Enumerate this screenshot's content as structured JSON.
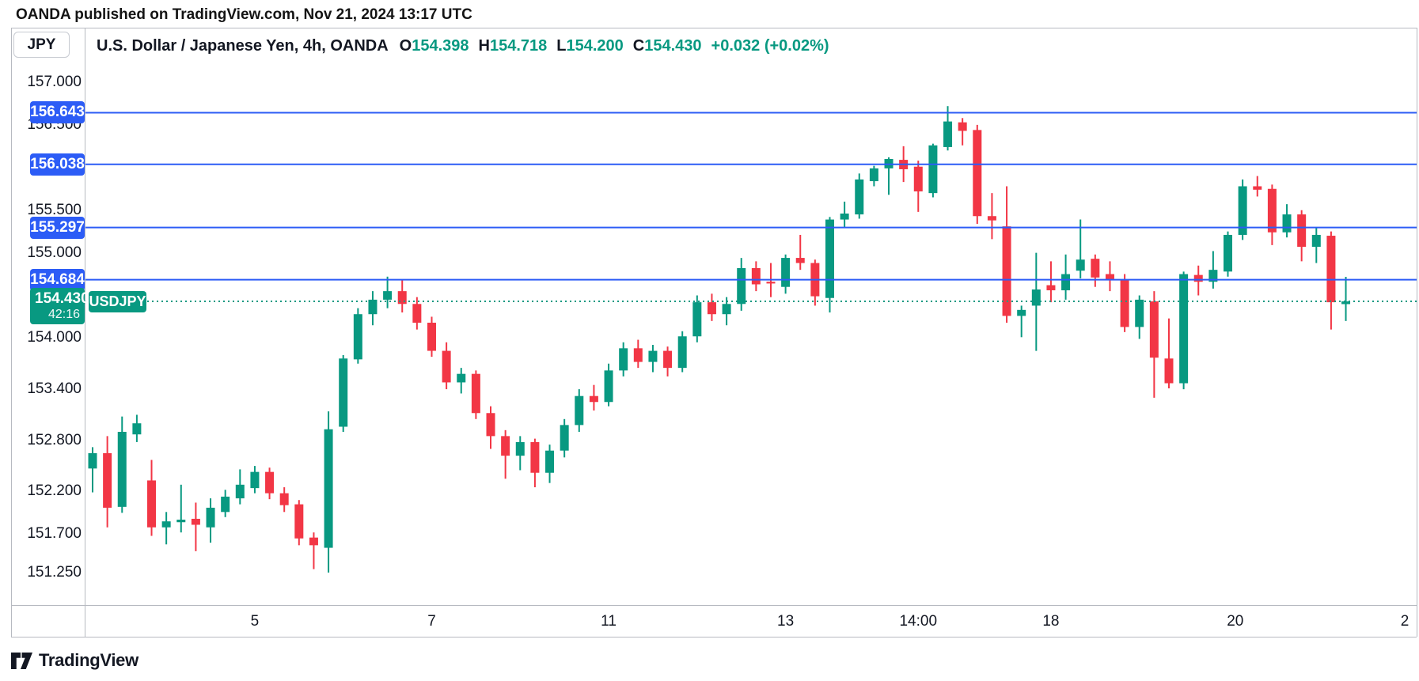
{
  "header": {
    "publisher_line": "OANDA published on TradingView.com, Nov 21, 2024 13:17 UTC"
  },
  "symbol_box": {
    "label": "JPY"
  },
  "chart_header": {
    "title": "U.S. Dollar / Japanese Yen, 4h, OANDA",
    "open_label": "O",
    "open": "154.398",
    "high_label": "H",
    "high": "154.718",
    "low_label": "L",
    "low": "154.200",
    "close_label": "C",
    "close": "154.430",
    "change": "+0.032 (+0.02%)"
  },
  "price_axis": {
    "ticks": [
      {
        "label": "157.000",
        "price": 157.0
      },
      {
        "label": "156.500",
        "price": 156.5
      },
      {
        "label": "155.500",
        "price": 155.5
      },
      {
        "label": "155.000",
        "price": 155.0
      },
      {
        "label": "154.000",
        "price": 154.0
      },
      {
        "label": "153.400",
        "price": 153.4
      },
      {
        "label": "152.800",
        "price": 152.8
      },
      {
        "label": "152.200",
        "price": 152.2
      },
      {
        "label": "151.700",
        "price": 151.7
      },
      {
        "label": "151.250",
        "price": 151.25
      }
    ]
  },
  "alert_lines": [
    {
      "label": "156.643",
      "price": 156.643
    },
    {
      "label": "156.038",
      "price": 156.038
    },
    {
      "label": "155.297",
      "price": 155.297
    },
    {
      "label": "154.684",
      "price": 154.684
    }
  ],
  "current_price": {
    "label": "154.430",
    "price": 154.43,
    "countdown": "42:16",
    "symbol": "USDJPY"
  },
  "time_axis": [
    {
      "label": "5",
      "index": 11
    },
    {
      "label": "7",
      "index": 23
    },
    {
      "label": "11",
      "index": 35
    },
    {
      "label": "13",
      "index": 47
    },
    {
      "label": "14:00",
      "index": 56
    },
    {
      "label": "18",
      "index": 65
    },
    {
      "label": "20",
      "index": 77.5
    },
    {
      "label": "2",
      "index": 89
    }
  ],
  "footer": {
    "brand": "TradingView"
  },
  "colors": {
    "up": "#089981",
    "down": "#f23645",
    "alert_blue": "#2c5cf6",
    "text": "#131722"
  },
  "chart_data": {
    "type": "candlestick",
    "symbol": "USDJPY",
    "title": "U.S. Dollar / Japanese Yen, 4h, OANDA",
    "timeframe": "4h",
    "ylim": [
      150.87,
      157.64
    ],
    "grid": false,
    "alert_levels": [
      156.643,
      156.038,
      155.297,
      154.684
    ],
    "last_price": 154.43,
    "time_tick_labels": [
      "5",
      "7",
      "11",
      "13",
      "14:00",
      "18",
      "20",
      "2"
    ],
    "price_tick_values": [
      157.0,
      156.5,
      155.5,
      155.0,
      154.0,
      153.4,
      152.8,
      152.2,
      151.7,
      151.25
    ],
    "candles_ohlc": [
      [
        152.47,
        152.72,
        152.19,
        152.65
      ],
      [
        152.65,
        152.85,
        151.78,
        152.01
      ],
      [
        152.02,
        153.08,
        151.95,
        152.9
      ],
      [
        152.87,
        153.1,
        152.78,
        153.0
      ],
      [
        152.33,
        152.57,
        151.68,
        151.78
      ],
      [
        151.78,
        151.96,
        151.58,
        151.85
      ],
      [
        151.84,
        152.28,
        151.72,
        151.87
      ],
      [
        151.88,
        152.07,
        151.5,
        151.81
      ],
      [
        151.78,
        152.12,
        151.6,
        152.01
      ],
      [
        151.96,
        152.22,
        151.9,
        152.14
      ],
      [
        152.12,
        152.46,
        152.05,
        152.28
      ],
      [
        152.24,
        152.5,
        152.18,
        152.43
      ],
      [
        152.43,
        152.48,
        152.11,
        152.18
      ],
      [
        152.18,
        152.25,
        151.96,
        152.04
      ],
      [
        152.05,
        152.1,
        151.57,
        151.65
      ],
      [
        151.66,
        151.72,
        151.29,
        151.57
      ],
      [
        151.54,
        153.14,
        151.25,
        152.93
      ],
      [
        152.96,
        153.8,
        152.9,
        153.76
      ],
      [
        153.75,
        154.35,
        153.7,
        154.28
      ],
      [
        154.28,
        154.55,
        154.15,
        154.45
      ],
      [
        154.45,
        154.72,
        154.35,
        154.55
      ],
      [
        154.55,
        154.68,
        154.3,
        154.4
      ],
      [
        154.4,
        154.48,
        154.1,
        154.18
      ],
      [
        154.18,
        154.25,
        153.78,
        153.85
      ],
      [
        153.85,
        153.95,
        153.4,
        153.48
      ],
      [
        153.48,
        153.65,
        153.35,
        153.58
      ],
      [
        153.58,
        153.62,
        153.05,
        153.12
      ],
      [
        153.12,
        153.2,
        152.7,
        152.85
      ],
      [
        152.85,
        152.92,
        152.35,
        152.62
      ],
      [
        152.62,
        152.85,
        152.45,
        152.78
      ],
      [
        152.78,
        152.82,
        152.25,
        152.42
      ],
      [
        152.42,
        152.75,
        152.3,
        152.68
      ],
      [
        152.68,
        153.05,
        152.6,
        152.98
      ],
      [
        152.98,
        153.4,
        152.9,
        153.32
      ],
      [
        153.32,
        153.45,
        153.15,
        153.25
      ],
      [
        153.25,
        153.7,
        153.2,
        153.62
      ],
      [
        153.62,
        153.95,
        153.55,
        153.88
      ],
      [
        153.88,
        153.98,
        153.65,
        153.72
      ],
      [
        153.72,
        153.92,
        153.6,
        153.85
      ],
      [
        153.85,
        153.9,
        153.55,
        153.65
      ],
      [
        153.65,
        154.08,
        153.6,
        154.02
      ],
      [
        154.02,
        154.5,
        153.95,
        154.42
      ],
      [
        154.42,
        154.52,
        154.2,
        154.28
      ],
      [
        154.28,
        154.48,
        154.15,
        154.4
      ],
      [
        154.4,
        154.94,
        154.32,
        154.82
      ],
      [
        154.82,
        154.9,
        154.55,
        154.63
      ],
      [
        154.66,
        154.88,
        154.48,
        154.64
      ],
      [
        154.6,
        154.98,
        154.52,
        154.94
      ],
      [
        154.94,
        155.21,
        154.8,
        154.88
      ],
      [
        154.88,
        154.92,
        154.38,
        154.49
      ],
      [
        154.47,
        155.42,
        154.3,
        155.39
      ],
      [
        155.39,
        155.6,
        155.3,
        155.46
      ],
      [
        155.45,
        155.93,
        155.4,
        155.86
      ],
      [
        155.84,
        156.02,
        155.78,
        155.99
      ],
      [
        155.99,
        156.12,
        155.68,
        156.1
      ],
      [
        156.09,
        156.25,
        155.83,
        155.98
      ],
      [
        156.01,
        156.08,
        155.48,
        155.72
      ],
      [
        155.7,
        156.28,
        155.65,
        156.26
      ],
      [
        156.24,
        156.72,
        156.2,
        156.54
      ],
      [
        156.53,
        156.58,
        156.26,
        156.43
      ],
      [
        156.44,
        156.5,
        155.34,
        155.43
      ],
      [
        155.43,
        155.7,
        155.16,
        155.38
      ],
      [
        155.31,
        155.78,
        154.18,
        154.26
      ],
      [
        154.26,
        154.38,
        154.01,
        154.33
      ],
      [
        154.38,
        155.0,
        153.85,
        154.57
      ],
      [
        154.62,
        154.9,
        154.42,
        154.56
      ],
      [
        154.56,
        154.98,
        154.45,
        154.75
      ],
      [
        154.79,
        155.39,
        154.7,
        154.92
      ],
      [
        154.93,
        154.98,
        154.6,
        154.71
      ],
      [
        154.75,
        154.9,
        154.55,
        154.69
      ],
      [
        154.69,
        154.75,
        154.07,
        154.13
      ],
      [
        154.13,
        154.5,
        153.99,
        154.45
      ],
      [
        154.43,
        154.55,
        153.3,
        153.77
      ],
      [
        153.76,
        154.23,
        153.41,
        153.47
      ],
      [
        153.47,
        154.78,
        153.4,
        154.75
      ],
      [
        154.74,
        154.85,
        154.5,
        154.66
      ],
      [
        154.66,
        155.02,
        154.58,
        154.8
      ],
      [
        154.78,
        155.25,
        154.72,
        155.21
      ],
      [
        155.21,
        155.86,
        155.15,
        155.78
      ],
      [
        155.78,
        155.9,
        155.66,
        155.74
      ],
      [
        155.75,
        155.8,
        155.09,
        155.24
      ],
      [
        155.24,
        155.57,
        155.18,
        155.45
      ],
      [
        155.45,
        155.5,
        154.9,
        155.07
      ],
      [
        155.07,
        155.3,
        154.88,
        155.21
      ],
      [
        155.2,
        155.25,
        154.1,
        154.42
      ],
      [
        154.398,
        154.718,
        154.2,
        154.43
      ]
    ]
  }
}
